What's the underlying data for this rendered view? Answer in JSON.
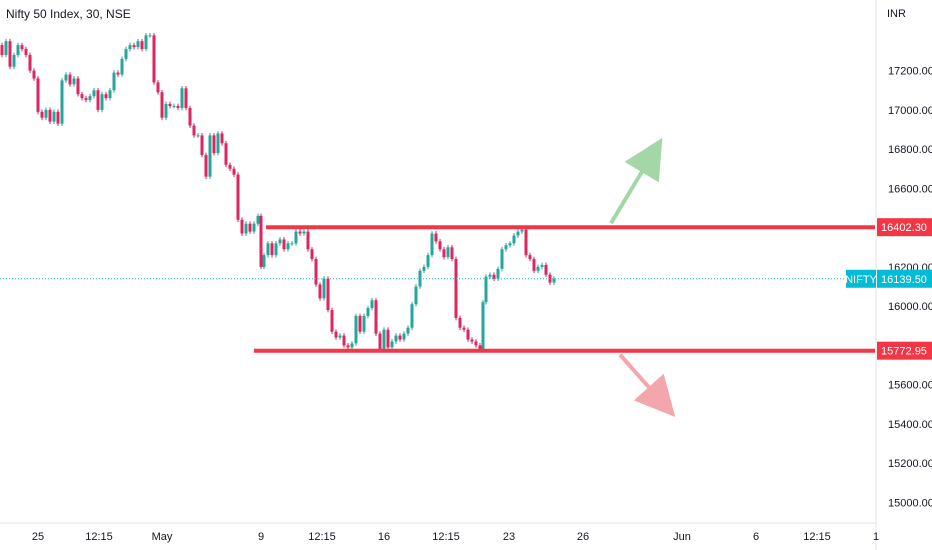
{
  "chart_data": {
    "type": "candlestick",
    "title": "Nifty 50 Index, 30, NSE",
    "currency": "INR",
    "ylim": [
      14900,
      17560
    ],
    "y_ticks": [
      "17200.00",
      "17000.00",
      "16800.00",
      "16600.00",
      "16400.00",
      "16200.00",
      "16000.00",
      "15800.00",
      "15600.00",
      "15400.00",
      "15200.00",
      "15000.00"
    ],
    "x_ticks": [
      "25",
      "12:15",
      "May",
      "9",
      "12:15",
      "16",
      "12:15",
      "23",
      "26",
      "Jun",
      "6",
      "12:15",
      "1"
    ],
    "colors": {
      "up": "#26a69a",
      "down": "#e0245e",
      "resistance": "#f23645",
      "support": "#f23645",
      "current": "#00bcd4",
      "up_arrow": "#a5d6a7",
      "down_arrow": "#f4a6ad"
    },
    "resistance": {
      "value": 16402.3,
      "label": "16402.30"
    },
    "support": {
      "value": 15772.95,
      "label": "15772.95"
    },
    "current": {
      "symbol": "NIFTY",
      "value": 16139.5,
      "label": "16139.50"
    },
    "price_path": [
      [
        0,
        17330
      ],
      [
        4,
        17280
      ],
      [
        8,
        17350
      ],
      [
        12,
        17220
      ],
      [
        16,
        17280
      ],
      [
        20,
        17330
      ],
      [
        24,
        17310
      ],
      [
        28,
        17280
      ],
      [
        32,
        17200
      ],
      [
        36,
        17160
      ],
      [
        40,
        16990
      ],
      [
        44,
        16960
      ],
      [
        48,
        17000
      ],
      [
        52,
        16940
      ],
      [
        56,
        16990
      ],
      [
        60,
        16930
      ],
      [
        64,
        17150
      ],
      [
        68,
        17180
      ],
      [
        72,
        17130
      ],
      [
        76,
        17160
      ],
      [
        80,
        17080
      ],
      [
        84,
        17060
      ],
      [
        88,
        17050
      ],
      [
        92,
        17070
      ],
      [
        96,
        17100
      ],
      [
        100,
        17000
      ],
      [
        104,
        17080
      ],
      [
        108,
        17060
      ],
      [
        112,
        17100
      ],
      [
        116,
        17190
      ],
      [
        120,
        17180
      ],
      [
        124,
        17260
      ],
      [
        128,
        17310
      ],
      [
        132,
        17330
      ],
      [
        136,
        17320
      ],
      [
        140,
        17350
      ],
      [
        144,
        17310
      ],
      [
        148,
        17380
      ],
      [
        152,
        17380
      ],
      [
        156,
        17140
      ],
      [
        160,
        17090
      ],
      [
        164,
        16960
      ],
      [
        168,
        17030
      ],
      [
        172,
        17020
      ],
      [
        176,
        17020
      ],
      [
        180,
        17010
      ],
      [
        184,
        17110
      ],
      [
        188,
        17010
      ],
      [
        192,
        16920
      ],
      [
        196,
        16870
      ],
      [
        200,
        16870
      ],
      [
        204,
        16770
      ],
      [
        208,
        16660
      ],
      [
        212,
        16870
      ],
      [
        216,
        16780
      ],
      [
        220,
        16880
      ],
      [
        224,
        16830
      ],
      [
        228,
        16720
      ],
      [
        232,
        16700
      ],
      [
        236,
        16670
      ],
      [
        240,
        16440
      ],
      [
        244,
        16370
      ],
      [
        248,
        16420
      ],
      [
        252,
        16380
      ],
      [
        256,
        16420
      ],
      [
        260,
        16460
      ],
      [
        262,
        16200
      ],
      [
        266,
        16260
      ],
      [
        270,
        16320
      ],
      [
        274,
        16260
      ],
      [
        278,
        16320
      ],
      [
        282,
        16340
      ],
      [
        286,
        16290
      ],
      [
        290,
        16320
      ],
      [
        294,
        16320
      ],
      [
        298,
        16380
      ],
      [
        302,
        16370
      ],
      [
        306,
        16380
      ],
      [
        310,
        16290
      ],
      [
        314,
        16240
      ],
      [
        318,
        16110
      ],
      [
        322,
        16040
      ],
      [
        326,
        16140
      ],
      [
        330,
        15980
      ],
      [
        334,
        15870
      ],
      [
        338,
        15840
      ],
      [
        342,
        15850
      ],
      [
        346,
        15800
      ],
      [
        350,
        15790
      ],
      [
        354,
        15810
      ],
      [
        358,
        15950
      ],
      [
        362,
        15870
      ],
      [
        366,
        15950
      ],
      [
        370,
        15990
      ],
      [
        374,
        16030
      ],
      [
        378,
        15860
      ],
      [
        382,
        15780
      ],
      [
        386,
        15880
      ],
      [
        390,
        15790
      ],
      [
        394,
        15820
      ],
      [
        398,
        15850
      ],
      [
        402,
        15830
      ],
      [
        406,
        15860
      ],
      [
        410,
        15890
      ],
      [
        414,
        16010
      ],
      [
        418,
        16100
      ],
      [
        422,
        16180
      ],
      [
        426,
        16200
      ],
      [
        430,
        16260
      ],
      [
        434,
        16370
      ],
      [
        438,
        16330
      ],
      [
        442,
        16290
      ],
      [
        446,
        16250
      ],
      [
        450,
        16300
      ],
      [
        454,
        16240
      ],
      [
        458,
        15940
      ],
      [
        462,
        15890
      ],
      [
        466,
        15880
      ],
      [
        470,
        15830
      ],
      [
        474,
        15820
      ],
      [
        478,
        15800
      ],
      [
        482,
        15780
      ],
      [
        484,
        16020
      ],
      [
        488,
        16150
      ],
      [
        492,
        16160
      ],
      [
        496,
        16140
      ],
      [
        500,
        16190
      ],
      [
        504,
        16290
      ],
      [
        508,
        16310
      ],
      [
        512,
        16320
      ],
      [
        516,
        16360
      ],
      [
        520,
        16380
      ],
      [
        524,
        16390
      ],
      [
        528,
        16260
      ],
      [
        532,
        16240
      ],
      [
        536,
        16180
      ],
      [
        540,
        16200
      ],
      [
        544,
        16210
      ],
      [
        548,
        16160
      ],
      [
        552,
        16120
      ],
      [
        556,
        16139.5
      ]
    ]
  }
}
